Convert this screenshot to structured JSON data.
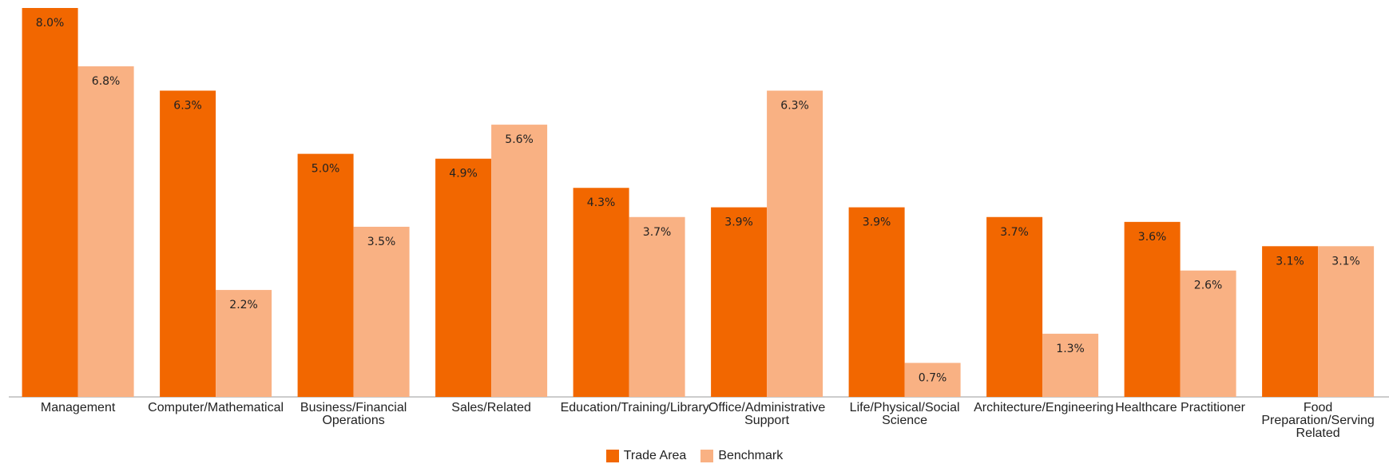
{
  "chart_data": {
    "type": "bar",
    "categories": [
      "Management",
      "Computer/Mathematical",
      "Business/Financial Operations",
      "Sales/Related",
      "Education/Training/Library",
      "Office/Administrative Support",
      "Life/Physical/Social Science",
      "Architecture/Engineering",
      "Healthcare Practitioner",
      "Food Preparation/Serving Related"
    ],
    "series": [
      {
        "name": "Trade Area",
        "color": "#f26700",
        "values": [
          8.0,
          6.3,
          5.0,
          4.9,
          4.3,
          3.9,
          3.9,
          3.7,
          3.6,
          3.1
        ],
        "value_labels": [
          "8.0%",
          "6.3%",
          "5.0%",
          "4.9%",
          "4.3%",
          "3.9%",
          "3.9%",
          "3.7%",
          "3.6%",
          "3.1%"
        ]
      },
      {
        "name": "Benchmark",
        "color": "#f9b183",
        "values": [
          6.8,
          2.2,
          3.5,
          5.6,
          3.7,
          6.3,
          0.7,
          1.3,
          2.6,
          3.1
        ],
        "value_labels": [
          "6.8%",
          "2.2%",
          "3.5%",
          "5.6%",
          "3.7%",
          "6.3%",
          "0.7%",
          "1.3%",
          "2.6%",
          "3.1%"
        ]
      }
    ],
    "ylim": [
      0,
      8.0
    ]
  }
}
